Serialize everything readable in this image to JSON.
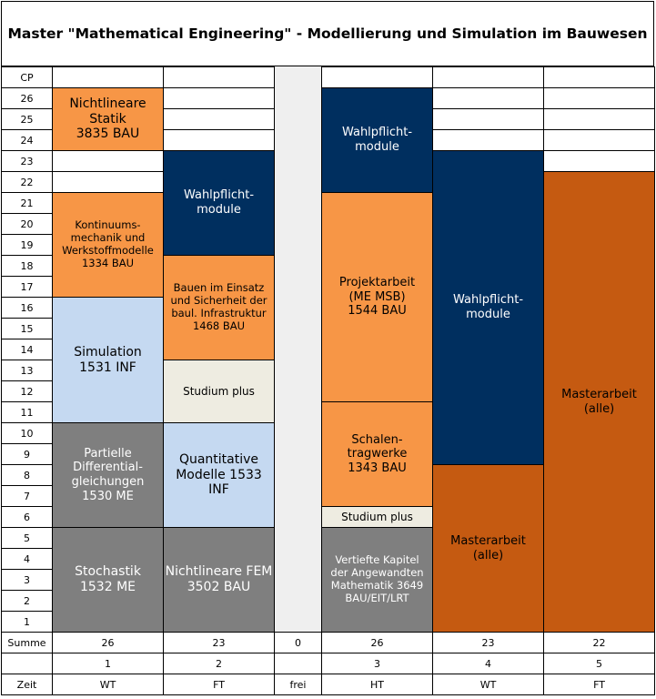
{
  "title": "Master \"Mathematical Engineering\" - Modellierung und Simulation im Bauwesen",
  "row_header": "CP",
  "cp_rows": [
    "26",
    "25",
    "24",
    "23",
    "22",
    "21",
    "20",
    "19",
    "18",
    "17",
    "16",
    "15",
    "14",
    "13",
    "12",
    "11",
    "10",
    "9",
    "8",
    "7",
    "6",
    "5",
    "4",
    "3",
    "2",
    "1"
  ],
  "sum_label": "Summe",
  "sums": [
    "26",
    "23",
    "0",
    "26",
    "23",
    "22"
  ],
  "semesters": [
    "1",
    "2",
    "",
    "3",
    "4",
    "5"
  ],
  "time_label": "Zeit",
  "times": [
    "WT",
    "FT",
    "frei",
    "HT",
    "WT",
    "FT"
  ],
  "colors": {
    "orange_light": "#f79646",
    "orange_dark": "#c55a11",
    "navy": "#002f5f",
    "light_blue": "#c5d9f1",
    "gray": "#7f7f7f",
    "cream": "#eeece1",
    "free_column": "#efefef"
  },
  "modules": [
    {
      "name": "Nichtlineare\nStatik\n3835 BAU",
      "col": 0,
      "from": 24,
      "to": 26,
      "color": "orange_light"
    },
    {
      "name": "Kontinuums-\nmechanik und\nWerkstoffmodelle\n1334 BAU",
      "col": 0,
      "from": 17,
      "to": 21,
      "color": "orange_light"
    },
    {
      "name": "Simulation\n1531 INF",
      "col": 0,
      "from": 11,
      "to": 16,
      "color": "light_blue"
    },
    {
      "name": "Partielle\nDifferential-\ngleichungen\n1530 ME",
      "col": 0,
      "from": 6,
      "to": 10,
      "color": "gray"
    },
    {
      "name": "Stochastik\n1532 ME",
      "col": 0,
      "from": 1,
      "to": 5,
      "color": "gray"
    },
    {
      "name": "Wahlpflicht-\nmodule",
      "col": 1,
      "from": 19,
      "to": 23,
      "color": "navy"
    },
    {
      "name": "Bauen im Einsatz\nund Sicherheit der\nbaul. Infrastruktur\n1468 BAU",
      "col": 1,
      "from": 14,
      "to": 18,
      "color": "orange_light"
    },
    {
      "name": "Studium plus",
      "col": 1,
      "from": 11,
      "to": 13,
      "color": "cream"
    },
    {
      "name": "Quantitative\nModelle 1533\nINF",
      "col": 1,
      "from": 6,
      "to": 10,
      "color": "light_blue"
    },
    {
      "name": "Nichtlineare FEM\n3502 BAU",
      "col": 1,
      "from": 1,
      "to": 5,
      "color": "gray"
    },
    {
      "name": "Wahlpflicht-\nmodule",
      "col": 3,
      "from": 22,
      "to": 26,
      "color": "navy"
    },
    {
      "name": "Projektarbeit\n(ME MSB)\n1544 BAU",
      "col": 3,
      "from": 12,
      "to": 21,
      "color": "orange_light"
    },
    {
      "name": "Schalen-\ntragwerke\n1343 BAU",
      "col": 3,
      "from": 7,
      "to": 11,
      "color": "orange_light"
    },
    {
      "name": "Studium plus",
      "col": 3,
      "from": 6,
      "to": 6,
      "color": "cream"
    },
    {
      "name": "Vertiefte Kapitel\nder Angewandten\nMathematik 3649\nBAU/EIT/LRT",
      "col": 3,
      "from": 1,
      "to": 5,
      "color": "gray"
    },
    {
      "name": "Wahlpflicht-\nmodule",
      "col": 4,
      "from": 9,
      "to": 23,
      "color": "navy"
    },
    {
      "name": "Masterarbeit\n(alle)",
      "col": 4,
      "from": 1,
      "to": 8,
      "color": "orange_dark"
    },
    {
      "name": "Masterarbeit\n(alle)",
      "col": 5,
      "from": 1,
      "to": 22,
      "color": "orange_dark"
    }
  ]
}
